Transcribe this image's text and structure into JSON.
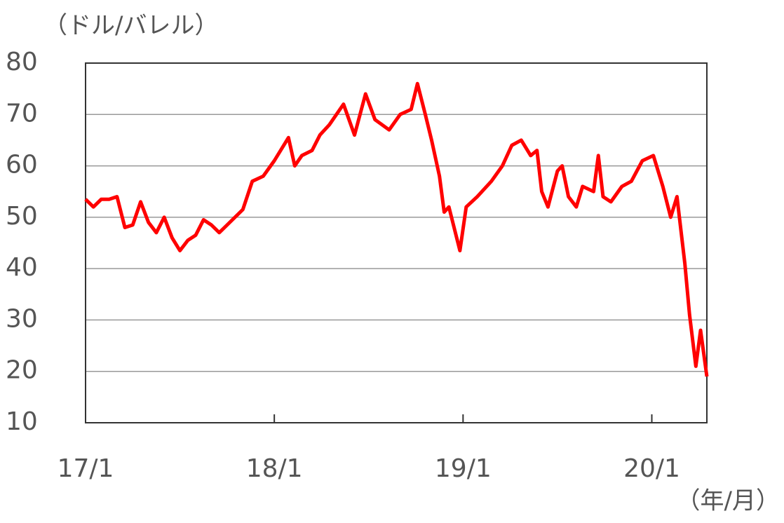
{
  "chart_data": {
    "type": "line",
    "y_label": "（ドル/バレル）",
    "x_label": "（年/月）",
    "color": "#ff0000",
    "x": [
      0,
      0.5,
      1,
      1.5,
      2,
      2.5,
      3,
      3.5,
      4,
      4.5,
      5,
      5.5,
      6,
      6.5,
      7,
      7.5,
      8,
      8.5,
      9,
      9.5,
      10,
      10.6,
      11.3,
      12,
      12.9,
      13.3,
      13.75,
      14.4,
      14.9,
      15.5,
      16.4,
      17.1,
      17.8,
      18.4,
      19.3,
      20,
      20.7,
      21.1,
      21.6,
      22,
      22.5,
      22.8,
      23.1,
      23.8,
      24.2,
      24.9,
      25.8,
      26.5,
      27.1,
      27.7,
      28.3,
      28.7,
      29,
      29.4,
      30,
      30.3,
      30.7,
      31.2,
      31.6,
      32.3,
      32.6,
      32.9,
      33.4,
      34.1,
      34.7,
      35.4,
      36.1,
      36.7,
      37.2,
      37.6,
      38.1,
      38.4,
      38.8,
      39.1,
      39.5
    ],
    "values": [
      53.5,
      52,
      53.5,
      53.5,
      54,
      48,
      48.5,
      53,
      49,
      47,
      50,
      46,
      43.5,
      45.5,
      46.5,
      49.5,
      48.5,
      47,
      48.5,
      50,
      51.5,
      57,
      58,
      61,
      65.5,
      60,
      62,
      63,
      66,
      68,
      72,
      66,
      74,
      69,
      67,
      70,
      71,
      76,
      70,
      65,
      58,
      51,
      52,
      43.5,
      52,
      54,
      57,
      60,
      64,
      65,
      62,
      63,
      55,
      52,
      59,
      60,
      54,
      52,
      56,
      55,
      62,
      54,
      53,
      56,
      57,
      61,
      62,
      56,
      50,
      54,
      41,
      31,
      21,
      28,
      19
    ],
    "xlim": [
      0,
      39.5
    ],
    "xticks": [
      {
        "value": 0,
        "label": "17/1"
      },
      {
        "value": 12,
        "label": "18/1"
      },
      {
        "value": 24,
        "label": "19/1"
      },
      {
        "value": 36,
        "label": "20/1"
      }
    ],
    "ylim": [
      10,
      80
    ],
    "yticks": [
      10,
      20,
      30,
      40,
      50,
      60,
      70,
      80
    ],
    "grid": true
  }
}
